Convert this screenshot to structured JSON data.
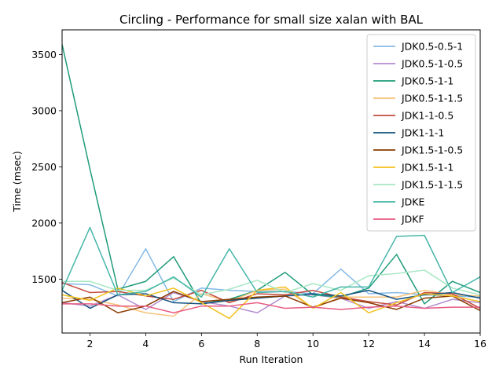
{
  "chart_data": {
    "type": "line",
    "title": "Circling - Performance for small size xalan with BAL",
    "xlabel": "Run Iteration",
    "ylabel": "Time (msec)",
    "xlim": [
      1,
      16
    ],
    "ylim": [
      1020,
      3720
    ],
    "xticks": [
      2,
      4,
      6,
      8,
      10,
      12,
      14,
      16
    ],
    "yticks": [
      1500,
      2000,
      2500,
      3000,
      3500
    ],
    "grid": false,
    "legend_position": "top-right",
    "x": [
      1,
      2,
      3,
      4,
      5,
      6,
      7,
      8,
      9,
      10,
      11,
      12,
      13,
      14,
      15,
      16
    ],
    "series": [
      {
        "name": "JDK0.5-0.5-1",
        "color": "#85bae6",
        "values": [
          1460,
          1450,
          1350,
          1770,
          1300,
          1420,
          1400,
          1390,
          1390,
          1370,
          1590,
          1370,
          1380,
          1360,
          1350,
          1340
        ]
      },
      {
        "name": "JDK0.5-1-0.5",
        "color": "#b28dd0",
        "values": [
          1290,
          1260,
          1360,
          1230,
          1380,
          1300,
          1260,
          1200,
          1350,
          1360,
          1330,
          1240,
          1300,
          1240,
          1320,
          1290
        ]
      },
      {
        "name": "JDK0.5-1-1",
        "color": "#1f9b7a",
        "values": [
          3590,
          2480,
          1410,
          1480,
          1700,
          1280,
          1320,
          1400,
          1560,
          1360,
          1340,
          1420,
          1720,
          1280,
          1480,
          1380
        ]
      },
      {
        "name": "JDK0.5-1-1.5",
        "color": "#f6c27a",
        "values": [
          1330,
          1320,
          1270,
          1200,
          1170,
          1370,
          1300,
          1400,
          1410,
          1240,
          1340,
          1340,
          1340,
          1400,
          1360,
          1350
        ]
      },
      {
        "name": "JDK1-1-0.5",
        "color": "#c24b3f",
        "values": [
          1470,
          1380,
          1390,
          1350,
          1320,
          1400,
          1290,
          1370,
          1360,
          1400,
          1340,
          1300,
          1270,
          1380,
          1370,
          1240
        ]
      },
      {
        "name": "JDK1-1-1",
        "color": "#15527e",
        "values": [
          1400,
          1240,
          1360,
          1370,
          1290,
          1280,
          1310,
          1330,
          1350,
          1370,
          1350,
          1400,
          1320,
          1360,
          1380,
          1330
        ]
      },
      {
        "name": "JDK1.5-1-0.5",
        "color": "#8a3b00",
        "values": [
          1290,
          1340,
          1200,
          1260,
          1390,
          1300,
          1320,
          1340,
          1350,
          1250,
          1330,
          1290,
          1230,
          1330,
          1350,
          1220
        ]
      },
      {
        "name": "JDK1.5-1-1",
        "color": "#f2c11d",
        "values": [
          1360,
          1310,
          1420,
          1350,
          1420,
          1290,
          1150,
          1400,
          1430,
          1240,
          1380,
          1200,
          1290,
          1370,
          1350,
          1300
        ]
      },
      {
        "name": "JDK1.5-1-1.5",
        "color": "#a8e7c4",
        "values": [
          1480,
          1480,
          1400,
          1400,
          1510,
          1360,
          1410,
          1490,
          1380,
          1460,
          1400,
          1530,
          1550,
          1580,
          1420,
          1360
        ]
      },
      {
        "name": "JDKE",
        "color": "#45b6a8",
        "values": [
          1400,
          1960,
          1360,
          1390,
          1520,
          1340,
          1770,
          1380,
          1390,
          1340,
          1430,
          1430,
          1880,
          1890,
          1380,
          1520
        ]
      },
      {
        "name": "JDKF",
        "color": "#e85b81",
        "values": [
          1280,
          1280,
          1260,
          1260,
          1200,
          1260,
          1260,
          1290,
          1240,
          1250,
          1230,
          1250,
          1260,
          1240,
          1250,
          1250
        ]
      }
    ]
  }
}
